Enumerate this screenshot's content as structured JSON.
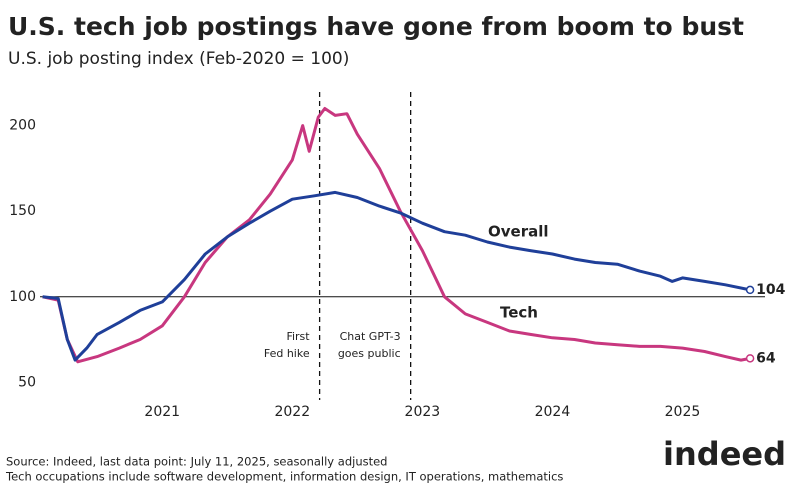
{
  "chart_data": {
    "type": "line",
    "title": "U.S. tech job postings have gone from boom to bust",
    "subtitle": "U.S. job posting index (Feb-2020 = 100)",
    "series": [
      {
        "name": "Overall",
        "color": "#1f3f99",
        "x": [
          2020.08,
          2020.2,
          2020.27,
          2020.33,
          2020.42,
          2020.5,
          2020.67,
          2020.83,
          2021.0,
          2021.17,
          2021.33,
          2021.5,
          2021.67,
          2021.83,
          2022.0,
          2022.17,
          2022.33,
          2022.5,
          2022.67,
          2022.83,
          2023.0,
          2023.17,
          2023.33,
          2023.5,
          2023.67,
          2023.83,
          2024.0,
          2024.17,
          2024.33,
          2024.5,
          2024.67,
          2024.83,
          2024.92,
          2025.0,
          2025.17,
          2025.33,
          2025.52
        ],
        "values": [
          100,
          99,
          75,
          63,
          70,
          78,
          85,
          92,
          97,
          110,
          125,
          135,
          143,
          150,
          157,
          159,
          161,
          158,
          153,
          149,
          143,
          138,
          136,
          132,
          129,
          127,
          125,
          122,
          120,
          119,
          115,
          112,
          109,
          111,
          109,
          107,
          104
        ]
      },
      {
        "name": "Tech",
        "color": "#c8377f",
        "x": [
          2020.08,
          2020.2,
          2020.27,
          2020.35,
          2020.5,
          2020.67,
          2020.83,
          2021.0,
          2021.17,
          2021.33,
          2021.5,
          2021.67,
          2021.83,
          2022.0,
          2022.08,
          2022.13,
          2022.2,
          2022.25,
          2022.33,
          2022.42,
          2022.5,
          2022.67,
          2022.83,
          2023.0,
          2023.17,
          2023.33,
          2023.5,
          2023.67,
          2023.83,
          2024.0,
          2024.17,
          2024.33,
          2024.5,
          2024.67,
          2024.83,
          2025.0,
          2025.17,
          2025.33,
          2025.45,
          2025.52
        ],
        "values": [
          100,
          98,
          75,
          62,
          65,
          70,
          75,
          83,
          100,
          120,
          135,
          145,
          160,
          180,
          200,
          185,
          205,
          210,
          206,
          207,
          195,
          175,
          150,
          127,
          100,
          90,
          85,
          80,
          78,
          76,
          75,
          73,
          72,
          71,
          71,
          70,
          68,
          65,
          63,
          64
        ]
      }
    ],
    "xlim": [
      2020.06,
      2025.55
    ],
    "xticks": [
      2021,
      2022,
      2023,
      2024,
      2025
    ],
    "ylim": [
      42,
      222
    ],
    "yticks": [
      50,
      100,
      150,
      200
    ],
    "reference_line": 100,
    "annotations": [
      {
        "x": 2022.21,
        "lines": [
          "First",
          "Fed hike"
        ]
      },
      {
        "x": 2022.91,
        "lines": [
          "Chat GPT-3",
          "goes public"
        ]
      }
    ],
    "source": "Source: Indeed, last data point: July 11, 2025, seasonally adjusted",
    "note": "Tech occupations include software development, information design, IT operations, mathematics",
    "logo": "indeed"
  }
}
